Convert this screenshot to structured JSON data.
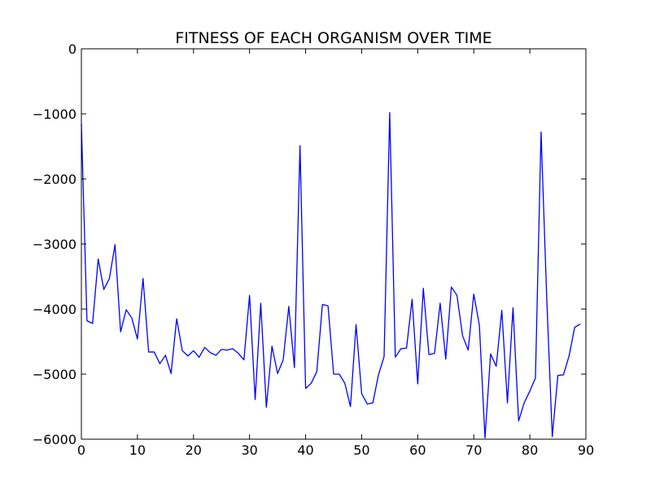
{
  "chart_data": {
    "type": "line",
    "title": "FITNESS OF EACH ORGANISM OVER TIME",
    "xlabel": "",
    "ylabel": "",
    "xlim": [
      0,
      90
    ],
    "ylim": [
      -6000,
      0
    ],
    "x_ticks": [
      0,
      10,
      20,
      30,
      40,
      50,
      60,
      70,
      80,
      90
    ],
    "y_ticks": [
      0,
      -1000,
      -2000,
      -3000,
      -4000,
      -5000,
      -6000
    ],
    "x_tick_labels": [
      "0",
      "10",
      "20",
      "30",
      "40",
      "50",
      "60",
      "70",
      "80",
      "90"
    ],
    "y_tick_labels": [
      "0",
      "−1000",
      "−2000",
      "−3000",
      "−4000",
      "−5000",
      "−6000"
    ],
    "grid": false,
    "line_color": "#0000ff",
    "series": [
      {
        "x": [
          0,
          1,
          2,
          3,
          4,
          5,
          6,
          7,
          8,
          9,
          10,
          11,
          12,
          13,
          14,
          15,
          16,
          17,
          18,
          19,
          20,
          21,
          22,
          23,
          24,
          25,
          26,
          27,
          28,
          29,
          30,
          31,
          32,
          33,
          34,
          35,
          36,
          37,
          38,
          39,
          40,
          41,
          42,
          43,
          44,
          45,
          46,
          47,
          48,
          49,
          50,
          51,
          52,
          53,
          54,
          55,
          56,
          57,
          58,
          59,
          60,
          61,
          62,
          63,
          64,
          65,
          66,
          67,
          68,
          69,
          70,
          71,
          72,
          73,
          74,
          75,
          76,
          77,
          78,
          79,
          80,
          81,
          82,
          83,
          84,
          85,
          86,
          87,
          88,
          89
        ],
        "values": [
          -1150,
          -4180,
          -4220,
          -3230,
          -3700,
          -3530,
          -3010,
          -4350,
          -4010,
          -4140,
          -4460,
          -3530,
          -4660,
          -4660,
          -4840,
          -4710,
          -4990,
          -4150,
          -4640,
          -4720,
          -4640,
          -4740,
          -4590,
          -4670,
          -4710,
          -4620,
          -4630,
          -4610,
          -4680,
          -4780,
          -3790,
          -5390,
          -3910,
          -5510,
          -4570,
          -4990,
          -4780,
          -3960,
          -4900,
          -1490,
          -5220,
          -5140,
          -4960,
          -3930,
          -3950,
          -5000,
          -5000,
          -5140,
          -5500,
          -4240,
          -5300,
          -5460,
          -5440,
          -5010,
          -4730,
          -980,
          -4740,
          -4610,
          -4600,
          -3850,
          -5150,
          -3680,
          -4700,
          -4680,
          -3910,
          -4770,
          -3660,
          -3790,
          -4410,
          -4630,
          -3770,
          -4250,
          -5980,
          -4690,
          -4880,
          -4020,
          -5440,
          -3980,
          -5720,
          -5440,
          -5260,
          -5060,
          -1280,
          -3800,
          -5960,
          -5020,
          -5010,
          -4720,
          -4280,
          -4230
        ]
      }
    ]
  }
}
